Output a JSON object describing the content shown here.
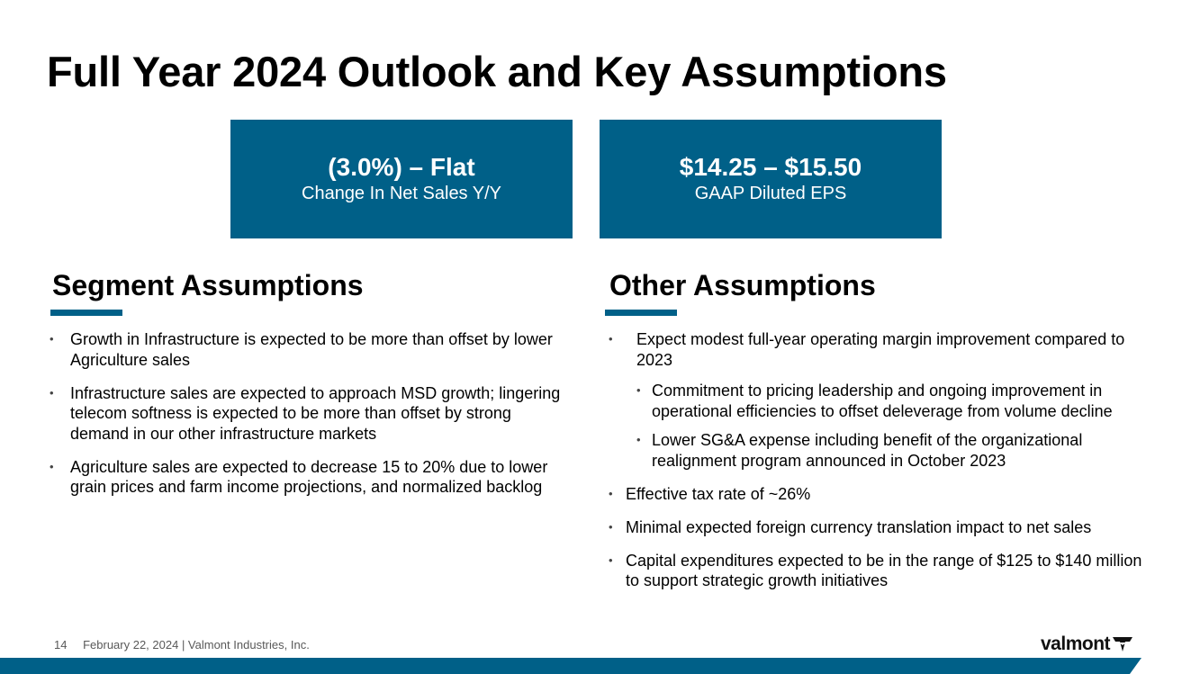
{
  "slide": {
    "title": "Full Year 2024 Outlook and Key Assumptions",
    "kpis": [
      {
        "value": "(3.0%) – Flat",
        "label": "Change In Net Sales Y/Y"
      },
      {
        "value": "$14.25 – $15.50",
        "label": "GAAP Diluted EPS"
      }
    ],
    "segment": {
      "heading": "Segment Assumptions",
      "bullets": [
        "Growth in Infrastructure is expected to be more than offset by lower Agriculture sales",
        "Infrastructure sales are expected to approach MSD growth; lingering telecom softness is expected to be more than offset by strong demand in our other infrastructure markets",
        "Agriculture sales are expected to decrease 15 to 20% due to lower grain prices and farm income projections, and normalized backlog"
      ]
    },
    "other": {
      "heading": "Other Assumptions",
      "bullets": [
        {
          "text": "Expect modest full-year operating margin improvement compared to 2023",
          "sub": [
            "Commitment to pricing leadership and ongoing improvement in operational efficiencies to offset deleverage from volume decline",
            "Lower SG&A expense including benefit of the organizational realignment program announced in October 2023"
          ]
        },
        {
          "text": "Effective tax rate of ~26%"
        },
        {
          "text": "Minimal expected foreign currency translation impact to net sales"
        },
        {
          "text": "Capital expenditures expected to be in the range of $125 to $140 million to support strategic growth initiatives"
        }
      ]
    },
    "footer": {
      "page_number": "14",
      "text": "February 22, 2024 | Valmont Industries, Inc."
    },
    "logo": {
      "text": "valmont",
      "icon": "valmont-v-mark-icon"
    },
    "colors": {
      "accent": "#006088",
      "text": "#000000",
      "footer_text": "#595959"
    }
  }
}
